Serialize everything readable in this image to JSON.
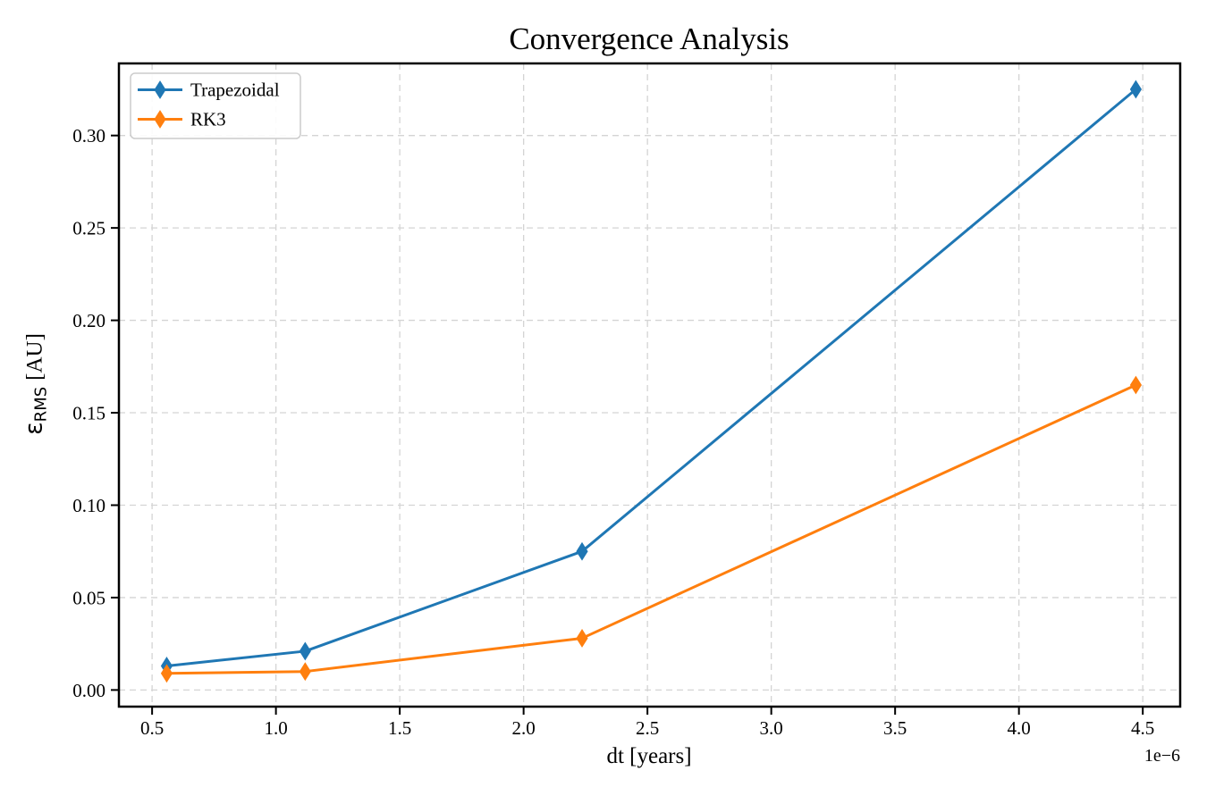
{
  "figure": {
    "background": "#ffffff"
  },
  "chart_data": {
    "type": "line",
    "title": "Convergence Analysis",
    "xlabel": "dt [years]",
    "ylabel": "εRMS [AU]",
    "ylabel_parts": {
      "symbol": "ε",
      "subscript": "RMS",
      "unit": "[AU]"
    },
    "x_offset_label": "1e−6",
    "x_unit_scale": "1e-6",
    "x": [
      0.559,
      1.118,
      2.236,
      4.472
    ],
    "series": [
      {
        "name": "Trapezoidal",
        "color": "#1f77b4",
        "values": [
          0.013,
          0.021,
          0.075,
          0.325
        ]
      },
      {
        "name": "RK3",
        "color": "#ff7f0e",
        "values": [
          0.009,
          0.01,
          0.028,
          0.165
        ]
      }
    ],
    "xticks": [
      0.5,
      1.0,
      1.5,
      2.0,
      2.5,
      3.0,
      3.5,
      4.0,
      4.5
    ],
    "xtick_labels": [
      "0.5",
      "1.0",
      "1.5",
      "2.0",
      "2.5",
      "3.0",
      "3.5",
      "4.0",
      "4.5"
    ],
    "yticks": [
      0.0,
      0.05,
      0.1,
      0.15,
      0.2,
      0.25,
      0.3
    ],
    "ytick_labels": [
      "0.00",
      "0.05",
      "0.10",
      "0.15",
      "0.20",
      "0.25",
      "0.30"
    ],
    "xlim": [
      0.366,
      4.651
    ],
    "ylim": [
      -0.009,
      0.339
    ],
    "grid": true,
    "grid_style": "dashed",
    "legend_position": "upper left",
    "marker": "thin-diamond",
    "colors": {
      "grid": "#d4d4d4",
      "spine": "#000000",
      "legend_border": "#cccccc",
      "legend_background": "#ffffff",
      "text": "#000000"
    }
  }
}
